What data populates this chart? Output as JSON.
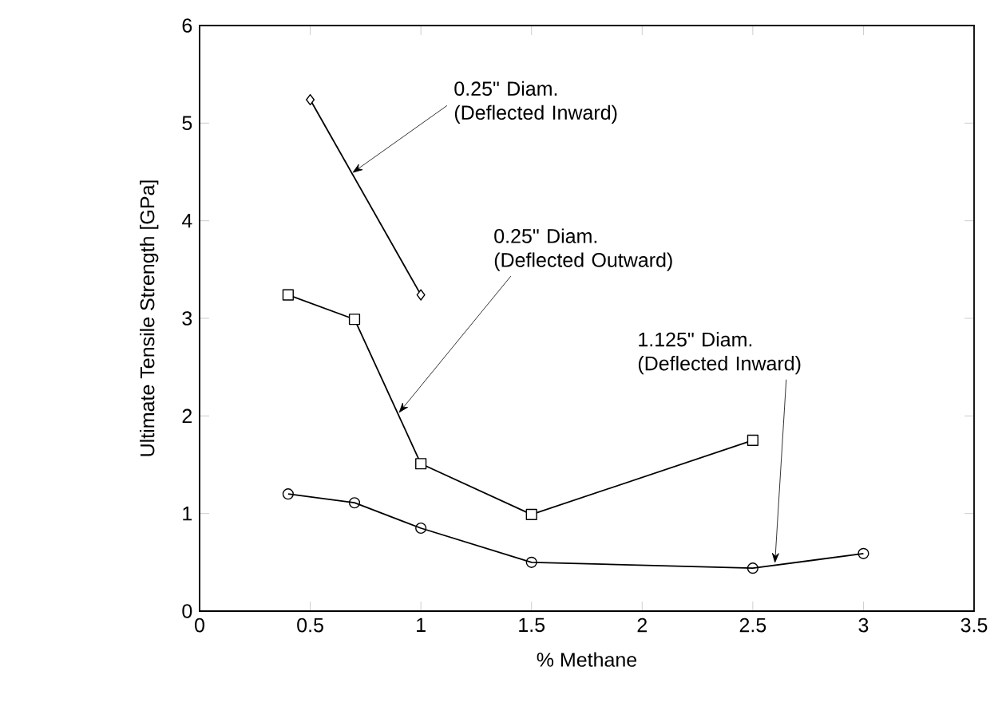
{
  "chart_data": {
    "type": "line",
    "xlabel": "% Methane",
    "ylabel": "Ultimate Tensile Strength [GPa]",
    "xlim": [
      0,
      3.5
    ],
    "ylim": [
      0,
      6
    ],
    "xticks": [
      0,
      0.5,
      1,
      1.5,
      2,
      2.5,
      3,
      3.5
    ],
    "yticks": [
      0,
      1,
      2,
      3,
      4,
      5,
      6
    ],
    "grid": false,
    "line_style": "solid",
    "series": [
      {
        "color": "#000000",
        "marker": "diamond",
        "x": [
          0.5,
          1.0
        ],
        "values": [
          5.24,
          3.24
        ]
      },
      {
        "color": "#000000",
        "marker": "square",
        "x": [
          0.4,
          0.7,
          1.0,
          1.5,
          2.5
        ],
        "values": [
          3.24,
          2.99,
          1.51,
          0.99,
          1.75
        ]
      },
      {
        "color": "#000000",
        "marker": "circle",
        "x": [
          0.4,
          0.7,
          1.0,
          1.5,
          2.5,
          3.0
        ],
        "values": [
          1.2,
          1.11,
          0.85,
          0.5,
          0.44,
          0.59
        ]
      }
    ],
    "annotations": [
      {
        "text": "0.25\" Diam. (Deflected Inward)",
        "x": 0.69,
        "y": 4.49
      },
      {
        "text": "0.25\" Diam. (Deflected Outward)",
        "x": 0.9,
        "y": 2.03
      },
      {
        "text": "1.125\" Diam. (Deflected Inward)",
        "x": 2.6,
        "y": 0.49
      }
    ]
  }
}
